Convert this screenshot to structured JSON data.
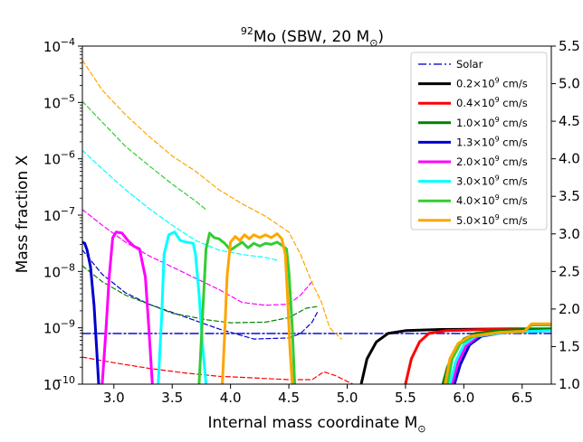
{
  "chart_data": {
    "type": "line",
    "title": {
      "sup": "92",
      "main": "Mo (SBW, 20 M",
      "sub": "⊙",
      "end": ")"
    },
    "xlabel": {
      "main": "Internal mass coordinate M",
      "sub": "⊙"
    },
    "ylabel": "Mass fraction X",
    "xlim": [
      2.73,
      6.75
    ],
    "ylim_log10": [
      -10,
      -4
    ],
    "right_ylim": [
      1.0,
      5.5
    ],
    "grid": false,
    "legend_position": "top-right",
    "x_ticks": [
      3.0,
      3.5,
      4.0,
      4.5,
      5.0,
      5.5,
      6.0,
      6.5
    ],
    "x_tick_labels": [
      "3.0",
      "3.5",
      "4.0",
      "4.5",
      "5.0",
      "5.5",
      "6.0",
      "6.5"
    ],
    "y_ticks": [
      {
        "exp": -4,
        "base": "10",
        "sup": "−4"
      },
      {
        "exp": -5,
        "base": "10",
        "sup": "−5"
      },
      {
        "exp": -6,
        "base": "10",
        "sup": "−6"
      },
      {
        "exp": -7,
        "base": "10",
        "sup": "−7"
      },
      {
        "exp": -8,
        "base": "10",
        "sup": "−8"
      },
      {
        "exp": -9,
        "base": "10",
        "sup": "−9"
      },
      {
        "exp": -10,
        "base": "10",
        "sup": "−10"
      }
    ],
    "right_ticks": [
      {
        "v": 5.5,
        "label": "5.5"
      },
      {
        "v": 5.0,
        "label": "5.0"
      },
      {
        "v": 4.5,
        "label": "4.5"
      },
      {
        "v": 4.0,
        "label": "4.0"
      },
      {
        "v": 3.5,
        "label": "3.5"
      },
      {
        "v": 3.0,
        "label": "3.0"
      },
      {
        "v": 2.5,
        "label": "2.5"
      },
      {
        "v": 2.0,
        "label": "2.0"
      },
      {
        "v": 1.5,
        "label": "1.5"
      },
      {
        "v": 1.0,
        "label": "1.0"
      }
    ],
    "legend": [
      {
        "pre": "Solar",
        "sup": "",
        "post": "",
        "color": "#1f1fd6",
        "style": "dashdot"
      },
      {
        "pre": "0.2×10",
        "sup": "9",
        "post": " cm/s",
        "color": "#000000",
        "style": "solid"
      },
      {
        "pre": "0.4×10",
        "sup": "9",
        "post": " cm/s",
        "color": "#ff0000",
        "style": "solid"
      },
      {
        "pre": "1.0×10",
        "sup": "9",
        "post": " cm/s",
        "color": "#008000",
        "style": "solid"
      },
      {
        "pre": "1.3×10",
        "sup": "9",
        "post": " cm/s",
        "color": "#0000cc",
        "style": "solid"
      },
      {
        "pre": "2.0×10",
        "sup": "9",
        "post": " cm/s",
        "color": "#ff00ff",
        "style": "solid"
      },
      {
        "pre": "3.0×10",
        "sup": "9",
        "post": " cm/s",
        "color": "#00ffff",
        "style": "solid"
      },
      {
        "pre": "4.0×10",
        "sup": "9",
        "post": " cm/s",
        "color": "#33cc33",
        "style": "solid"
      },
      {
        "pre": "5.0×10",
        "sup": "9",
        "post": " cm/s",
        "color": "#ffa500",
        "style": "solid"
      }
    ],
    "series": [
      {
        "id": "solar",
        "color": "#1f1fd6",
        "style": "dashdot",
        "width": 1.6,
        "points": [
          [
            2.73,
            -9.1
          ],
          [
            6.75,
            -9.1
          ]
        ]
      },
      {
        "id": "red_dashed",
        "color": "#ff0000",
        "style": "dashed",
        "width": 1.2,
        "points": [
          [
            2.73,
            -9.52
          ],
          [
            3.0,
            -9.62
          ],
          [
            3.3,
            -9.72
          ],
          [
            3.6,
            -9.8
          ],
          [
            3.9,
            -9.86
          ],
          [
            4.2,
            -9.89
          ],
          [
            4.5,
            -9.92
          ],
          [
            4.7,
            -9.92
          ],
          [
            4.8,
            -9.78
          ],
          [
            4.9,
            -9.85
          ],
          [
            5.0,
            -9.95
          ],
          [
            5.05,
            -10.0
          ]
        ]
      },
      {
        "id": "blue_dashed",
        "color": "#0000cc",
        "style": "dashed",
        "width": 1.2,
        "points": [
          [
            2.73,
            -7.62
          ],
          [
            2.9,
            -8.05
          ],
          [
            3.1,
            -8.38
          ],
          [
            3.3,
            -8.58
          ],
          [
            3.6,
            -8.8
          ],
          [
            3.9,
            -9.02
          ],
          [
            4.2,
            -9.2
          ],
          [
            4.5,
            -9.18
          ],
          [
            4.6,
            -9.1
          ],
          [
            4.7,
            -8.9
          ],
          [
            4.75,
            -8.7
          ]
        ]
      },
      {
        "id": "green_dashed",
        "color": "#008000",
        "style": "dashed",
        "width": 1.2,
        "points": [
          [
            2.73,
            -7.9
          ],
          [
            2.9,
            -8.18
          ],
          [
            3.1,
            -8.42
          ],
          [
            3.3,
            -8.58
          ],
          [
            3.5,
            -8.74
          ],
          [
            3.8,
            -8.86
          ],
          [
            4.0,
            -8.91
          ],
          [
            4.3,
            -8.9
          ],
          [
            4.5,
            -8.82
          ],
          [
            4.65,
            -8.65
          ],
          [
            4.75,
            -8.62
          ]
        ]
      },
      {
        "id": "magenta_dashed",
        "color": "#ff00ff",
        "style": "dashed",
        "width": 1.2,
        "points": [
          [
            2.73,
            -6.9
          ],
          [
            2.9,
            -7.18
          ],
          [
            3.1,
            -7.48
          ],
          [
            3.3,
            -7.72
          ],
          [
            3.5,
            -7.92
          ],
          [
            3.7,
            -8.12
          ],
          [
            3.9,
            -8.32
          ],
          [
            4.1,
            -8.55
          ],
          [
            4.3,
            -8.6
          ],
          [
            4.5,
            -8.58
          ],
          [
            4.6,
            -8.42
          ],
          [
            4.7,
            -8.18
          ]
        ]
      },
      {
        "id": "cyan_dashed",
        "color": "#00ffff",
        "style": "dashed",
        "width": 1.2,
        "points": [
          [
            2.73,
            -5.85
          ],
          [
            2.9,
            -6.18
          ],
          [
            3.1,
            -6.55
          ],
          [
            3.3,
            -6.88
          ],
          [
            3.5,
            -7.18
          ],
          [
            3.7,
            -7.45
          ],
          [
            3.9,
            -7.62
          ],
          [
            4.1,
            -7.7
          ],
          [
            4.3,
            -7.75
          ],
          [
            4.4,
            -7.8
          ]
        ]
      },
      {
        "id": "green2_dashed",
        "color": "#33cc33",
        "style": "dashed",
        "width": 1.2,
        "points": [
          [
            2.73,
            -4.98
          ],
          [
            2.9,
            -5.35
          ],
          [
            3.1,
            -5.78
          ],
          [
            3.3,
            -6.12
          ],
          [
            3.5,
            -6.45
          ],
          [
            3.7,
            -6.75
          ],
          [
            3.8,
            -6.92
          ]
        ]
      },
      {
        "id": "orange_dashed",
        "color": "#ffa500",
        "style": "dashed",
        "width": 1.2,
        "points": [
          [
            2.73,
            -4.25
          ],
          [
            2.9,
            -4.78
          ],
          [
            3.1,
            -5.22
          ],
          [
            3.3,
            -5.6
          ],
          [
            3.5,
            -5.95
          ],
          [
            3.7,
            -6.22
          ],
          [
            3.9,
            -6.55
          ],
          [
            4.1,
            -6.8
          ],
          [
            4.3,
            -7.02
          ],
          [
            4.5,
            -7.3
          ],
          [
            4.6,
            -7.7
          ],
          [
            4.65,
            -7.95
          ],
          [
            4.7,
            -8.2
          ],
          [
            4.78,
            -8.55
          ],
          [
            4.85,
            -9.0
          ],
          [
            4.95,
            -9.2
          ]
        ]
      },
      {
        "id": "blue_solid",
        "color": "#0000cc",
        "style": "solid",
        "width": 3,
        "points": [
          [
            2.73,
            -7.48
          ],
          [
            2.75,
            -7.5
          ],
          [
            2.77,
            -7.62
          ],
          [
            2.8,
            -7.92
          ],
          [
            2.83,
            -8.6
          ],
          [
            2.85,
            -9.3
          ],
          [
            2.87,
            -10.0
          ]
        ]
      },
      {
        "id": "magenta_solid",
        "color": "#ff00ff",
        "style": "solid",
        "width": 3,
        "points": [
          [
            2.9,
            -10.0
          ],
          [
            2.93,
            -9.1
          ],
          [
            2.96,
            -8.1
          ],
          [
            2.99,
            -7.4
          ],
          [
            3.02,
            -7.3
          ],
          [
            3.07,
            -7.32
          ],
          [
            3.12,
            -7.45
          ],
          [
            3.17,
            -7.55
          ],
          [
            3.22,
            -7.6
          ],
          [
            3.27,
            -8.1
          ],
          [
            3.3,
            -9.0
          ],
          [
            3.33,
            -10.0
          ]
        ]
      },
      {
        "id": "cyan_solid",
        "color": "#00ffff",
        "style": "solid",
        "width": 3,
        "points": [
          [
            3.38,
            -10.0
          ],
          [
            3.41,
            -8.8
          ],
          [
            3.43,
            -7.7
          ],
          [
            3.47,
            -7.35
          ],
          [
            3.52,
            -7.3
          ],
          [
            3.57,
            -7.45
          ],
          [
            3.62,
            -7.48
          ],
          [
            3.68,
            -7.5
          ],
          [
            3.7,
            -7.7
          ],
          [
            3.73,
            -8.4
          ],
          [
            3.76,
            -9.3
          ],
          [
            3.79,
            -10.0
          ]
        ]
      },
      {
        "id": "green2_solid",
        "color": "#33cc33",
        "style": "solid",
        "width": 3,
        "points": [
          [
            3.73,
            -10.0
          ],
          [
            3.76,
            -8.8
          ],
          [
            3.79,
            -7.6
          ],
          [
            3.82,
            -7.32
          ],
          [
            3.86,
            -7.4
          ],
          [
            3.9,
            -7.42
          ],
          [
            3.95,
            -7.5
          ],
          [
            4.0,
            -7.62
          ],
          [
            4.05,
            -7.55
          ],
          [
            4.1,
            -7.48
          ],
          [
            4.15,
            -7.58
          ],
          [
            4.2,
            -7.5
          ],
          [
            4.25,
            -7.55
          ],
          [
            4.3,
            -7.5
          ],
          [
            4.35,
            -7.52
          ],
          [
            4.4,
            -7.48
          ],
          [
            4.45,
            -7.55
          ],
          [
            4.48,
            -7.6
          ],
          [
            4.5,
            -8.0
          ],
          [
            4.53,
            -9.0
          ],
          [
            4.55,
            -10.0
          ]
        ]
      },
      {
        "id": "orange_solid",
        "color": "#ffa500",
        "style": "solid",
        "width": 3,
        "points": [
          [
            3.93,
            -10.0
          ],
          [
            3.95,
            -9.1
          ],
          [
            3.97,
            -8.1
          ],
          [
            4.0,
            -7.48
          ],
          [
            4.04,
            -7.38
          ],
          [
            4.08,
            -7.45
          ],
          [
            4.12,
            -7.35
          ],
          [
            4.16,
            -7.42
          ],
          [
            4.2,
            -7.35
          ],
          [
            4.25,
            -7.4
          ],
          [
            4.3,
            -7.35
          ],
          [
            4.35,
            -7.4
          ],
          [
            4.4,
            -7.33
          ],
          [
            4.44,
            -7.42
          ],
          [
            4.47,
            -7.7
          ],
          [
            4.49,
            -8.5
          ],
          [
            4.51,
            -9.4
          ],
          [
            4.53,
            -10.0
          ]
        ]
      },
      {
        "id": "black_solid",
        "color": "#000000",
        "style": "solid",
        "width": 3,
        "points": [
          [
            5.12,
            -10.0
          ],
          [
            5.17,
            -9.55
          ],
          [
            5.25,
            -9.25
          ],
          [
            5.35,
            -9.1
          ],
          [
            5.5,
            -9.05
          ],
          [
            5.8,
            -9.03
          ],
          [
            6.4,
            -9.02
          ],
          [
            6.75,
            -9.02
          ]
        ]
      },
      {
        "id": "red_solid",
        "color": "#ff0000",
        "style": "solid",
        "width": 3,
        "points": [
          [
            5.5,
            -10.0
          ],
          [
            5.55,
            -9.55
          ],
          [
            5.62,
            -9.25
          ],
          [
            5.7,
            -9.1
          ],
          [
            5.85,
            -9.05
          ],
          [
            6.2,
            -9.03
          ],
          [
            6.75,
            -9.02
          ]
        ]
      },
      {
        "id": "green_solid",
        "color": "#008000",
        "style": "solid",
        "width": 3,
        "points": [
          [
            5.82,
            -10.0
          ],
          [
            5.86,
            -9.7
          ],
          [
            5.92,
            -9.4
          ],
          [
            6.0,
            -9.2
          ],
          [
            6.1,
            -9.1
          ],
          [
            6.3,
            -9.05
          ],
          [
            6.5,
            -9.03
          ],
          [
            6.75,
            -9.02
          ]
        ]
      },
      {
        "id": "late_blue",
        "color": "#0000cc",
        "style": "solid",
        "width": 3,
        "points": [
          [
            5.92,
            -10.0
          ],
          [
            5.97,
            -9.65
          ],
          [
            6.05,
            -9.3
          ],
          [
            6.15,
            -9.15
          ],
          [
            6.35,
            -9.08
          ],
          [
            6.75,
            -9.05
          ]
        ]
      },
      {
        "id": "late_magenta",
        "color": "#ff00ff",
        "style": "solid",
        "width": 3,
        "points": [
          [
            5.9,
            -10.0
          ],
          [
            5.95,
            -9.62
          ],
          [
            6.02,
            -9.32
          ],
          [
            6.12,
            -9.15
          ],
          [
            6.35,
            -9.08
          ],
          [
            6.75,
            -9.05
          ]
        ]
      },
      {
        "id": "late_cyan",
        "color": "#00ffff",
        "style": "solid",
        "width": 3,
        "points": [
          [
            5.88,
            -10.0
          ],
          [
            5.93,
            -9.6
          ],
          [
            6.0,
            -9.3
          ],
          [
            6.1,
            -9.15
          ],
          [
            6.35,
            -9.08
          ],
          [
            6.75,
            -9.05
          ]
        ]
      },
      {
        "id": "late_green2",
        "color": "#33cc33",
        "style": "solid",
        "width": 3,
        "points": [
          [
            5.86,
            -10.0
          ],
          [
            5.9,
            -9.55
          ],
          [
            5.97,
            -9.28
          ],
          [
            6.08,
            -9.15
          ],
          [
            6.3,
            -9.08
          ],
          [
            6.52,
            -9.06
          ],
          [
            6.58,
            -8.95
          ],
          [
            6.75,
            -8.95
          ]
        ]
      },
      {
        "id": "late_orange",
        "color": "#ffa500",
        "style": "solid",
        "width": 3,
        "points": [
          [
            5.84,
            -10.0
          ],
          [
            5.88,
            -9.55
          ],
          [
            5.95,
            -9.28
          ],
          [
            6.05,
            -9.15
          ],
          [
            6.3,
            -9.08
          ],
          [
            6.52,
            -9.06
          ],
          [
            6.58,
            -8.93
          ],
          [
            6.75,
            -8.93
          ]
        ]
      }
    ]
  }
}
